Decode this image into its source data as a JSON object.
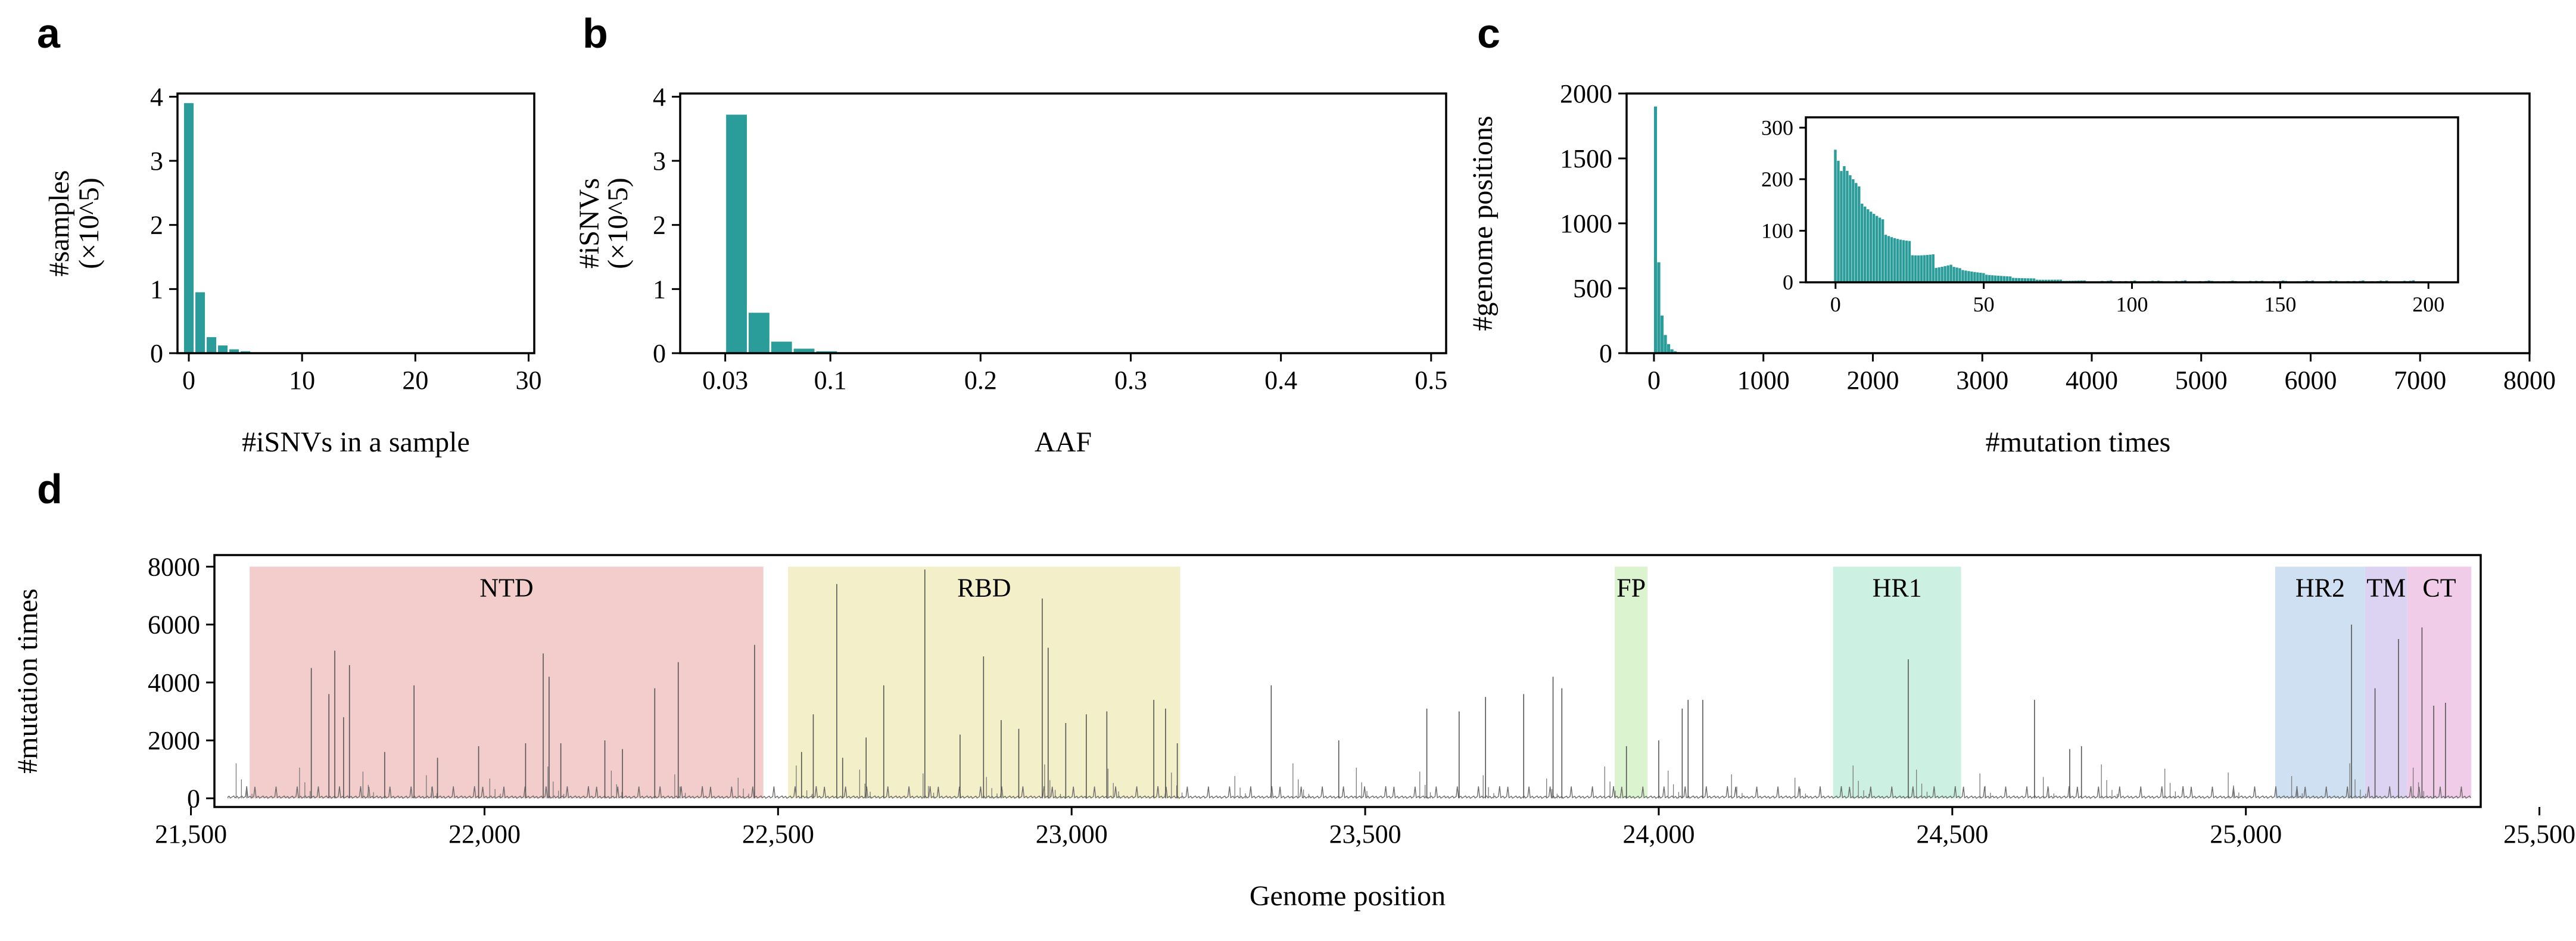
{
  "chart_data": [
    {
      "panel": "a",
      "type": "bar",
      "xlabel": "#iSNVs in a sample",
      "ylabel_lines": [
        "#samples",
        "(×10^5)"
      ],
      "xlim": [
        -1,
        30.5
      ],
      "ylim": [
        0,
        4.05
      ],
      "xticks": [
        0,
        10,
        20,
        30
      ],
      "yticks": [
        0,
        1,
        2,
        3,
        4
      ],
      "x": [
        0,
        1,
        2,
        3,
        4,
        5
      ],
      "values": [
        3.9,
        0.95,
        0.25,
        0.12,
        0.06,
        0.03
      ],
      "color": "#2a9d9a"
    },
    {
      "panel": "b",
      "type": "bar",
      "xlabel": "AAF",
      "ylabel_lines": [
        "#iSNVs",
        "(×10^5)"
      ],
      "xlim": [
        0.0,
        0.51
      ],
      "ylim": [
        0,
        4.05
      ],
      "xticks": [
        0.03,
        0.1,
        0.2,
        0.3,
        0.4,
        0.5
      ],
      "xticklabels": [
        "0.03",
        "0.1",
        "0.2",
        "0.3",
        "0.4",
        "0.5"
      ],
      "yticks": [
        0,
        1,
        2,
        3,
        4
      ],
      "x": [
        0.0375,
        0.0525,
        0.0675,
        0.0825,
        0.0975
      ],
      "bin_width": 0.015,
      "values": [
        3.72,
        0.63,
        0.18,
        0.07,
        0.03
      ],
      "color": "#2a9d9a"
    },
    {
      "panel": "c",
      "type": "bar",
      "xlabel": "#mutation times",
      "ylabel": "#genome positions",
      "xlim": [
        -250,
        8000
      ],
      "ylim": [
        0,
        2000
      ],
      "xticks": [
        0,
        1000,
        2000,
        3000,
        4000,
        5000,
        6000,
        7000,
        8000
      ],
      "yticks": [
        0,
        500,
        1000,
        1500,
        2000
      ],
      "x": [
        0,
        30,
        60,
        90,
        120,
        150,
        180,
        210
      ],
      "values": [
        1900,
        700,
        290,
        140,
        70,
        30,
        15,
        8
      ],
      "color": "#2a9d9a",
      "inset": {
        "type": "bar",
        "xlim": [
          -10,
          210
        ],
        "ylim": [
          0,
          320
        ],
        "xticks": [
          0,
          50,
          100,
          150,
          200
        ],
        "yticks": [
          0,
          100,
          200,
          300
        ],
        "x_start": 0,
        "x_end": 199,
        "peak": 270,
        "decay": 9,
        "tail": 2,
        "color": "#2a9d9a"
      }
    },
    {
      "panel": "d",
      "type": "bar",
      "xlabel": "Genome position",
      "ylabel": "#mutation times",
      "xlim": [
        21540,
        25400
      ],
      "ylim": [
        -300,
        8400
      ],
      "xticks": [
        21500,
        22000,
        22500,
        23000,
        23500,
        24000,
        24500,
        25000,
        25500
      ],
      "xticklabels": [
        "21,500",
        "22,000",
        "22,500",
        "23,000",
        "23,500",
        "24,000",
        "24,500",
        "25,000",
        "25,500"
      ],
      "yticks": [
        0,
        2000,
        4000,
        6000,
        8000
      ],
      "spike_range": [
        21563,
        25384
      ],
      "spikes": [
        [
          21705,
          4500
        ],
        [
          21735,
          3600
        ],
        [
          21745,
          5100
        ],
        [
          21760,
          2800
        ],
        [
          21770,
          4600
        ],
        [
          21830,
          1600
        ],
        [
          21880,
          3900
        ],
        [
          21920,
          1400
        ],
        [
          21990,
          1800
        ],
        [
          22070,
          1900
        ],
        [
          22100,
          5000
        ],
        [
          22110,
          4200
        ],
        [
          22130,
          1900
        ],
        [
          22205,
          2000
        ],
        [
          22235,
          1700
        ],
        [
          22290,
          3800
        ],
        [
          22330,
          4700
        ],
        [
          22460,
          5300
        ],
        [
          22540,
          1600
        ],
        [
          22560,
          2900
        ],
        [
          22600,
          7400
        ],
        [
          22610,
          1400
        ],
        [
          22650,
          2100
        ],
        [
          22680,
          3900
        ],
        [
          22750,
          7900
        ],
        [
          22810,
          2200
        ],
        [
          22850,
          4900
        ],
        [
          22880,
          2700
        ],
        [
          22910,
          2400
        ],
        [
          22950,
          6900
        ],
        [
          22960,
          5200
        ],
        [
          22990,
          2600
        ],
        [
          23025,
          2900
        ],
        [
          23060,
          3000
        ],
        [
          23140,
          3400
        ],
        [
          23160,
          3100
        ],
        [
          23180,
          1900
        ],
        [
          23340,
          3900
        ],
        [
          23455,
          2000
        ],
        [
          23605,
          3100
        ],
        [
          23660,
          3000
        ],
        [
          23705,
          3500
        ],
        [
          23770,
          3600
        ],
        [
          23820,
          4200
        ],
        [
          23835,
          3800
        ],
        [
          23945,
          1800
        ],
        [
          24000,
          2000
        ],
        [
          24040,
          3100
        ],
        [
          24050,
          3400
        ],
        [
          24075,
          3400
        ],
        [
          24425,
          4800
        ],
        [
          24640,
          3400
        ],
        [
          24700,
          1700
        ],
        [
          24720,
          1800
        ],
        [
          25180,
          6000
        ],
        [
          25220,
          3800
        ],
        [
          25260,
          5500
        ],
        [
          25300,
          5900
        ],
        [
          25320,
          3200
        ],
        [
          25340,
          3300
        ]
      ],
      "regions": [
        {
          "label": "NTD",
          "start": 21600,
          "end": 22475,
          "color": "#f3cccc"
        },
        {
          "label": "RBD",
          "start": 22517,
          "end": 23185,
          "color": "#f3efc9"
        },
        {
          "label": "FP",
          "start": 23925,
          "end": 23981,
          "color": "#dcf3cf"
        },
        {
          "label": "HR1",
          "start": 24297,
          "end": 24515,
          "color": "#ccf1e2"
        },
        {
          "label": "HR2",
          "start": 25050,
          "end": 25203,
          "color": "#cfe0f2"
        },
        {
          "label": "TM",
          "start": 25203,
          "end": 25275,
          "color": "#dcd3f2"
        },
        {
          "label": "CT",
          "start": 25275,
          "end": 25384,
          "color": "#f0cce9"
        }
      ]
    }
  ]
}
